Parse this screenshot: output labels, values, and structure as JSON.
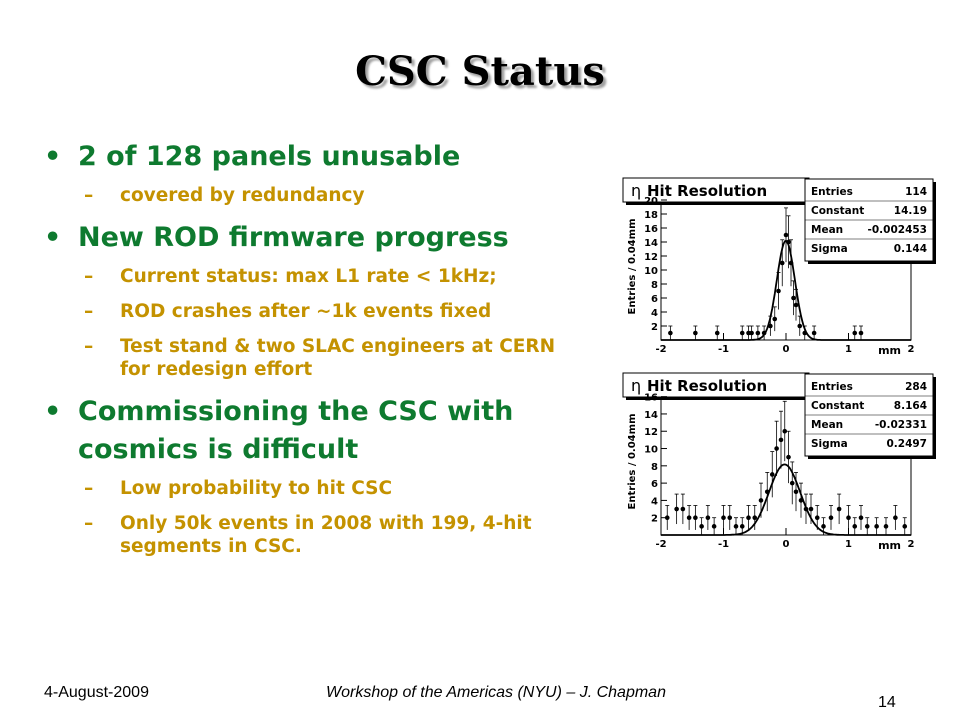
{
  "slide": {
    "title": "CSC Status",
    "bullets": [
      {
        "text": "2 of 128 panels unusable",
        "subs": [
          "covered by redundancy"
        ]
      },
      {
        "text": "New ROD firmware progress",
        "subs": [
          "Current status: max L1 rate < 1kHz;",
          "ROD crashes after ~1k events fixed",
          "Test stand & two SLAC engineers at CERN for redesign effort"
        ]
      },
      {
        "text": "Commissioning the CSC with cosmics is difficult",
        "subs": [
          "Low probability to hit CSC",
          "Only 50k events in 2008 with 199, 4-hit segments in CSC."
        ]
      }
    ],
    "bullet_glyph": "•",
    "dash_glyph": "–"
  },
  "footer": {
    "date": "4-August-2009",
    "event": "Workshop of the Americas (NYU) – J. Chapman",
    "page": "14"
  },
  "plots": [
    {
      "title_symbol": "η",
      "title": "Hit Resolution",
      "ylabel": "Entries / 0.04mm",
      "xlabel": "mm",
      "ylim": [
        0,
        21
      ],
      "yticks": [
        "2",
        "4",
        "6",
        "8",
        "10",
        "12",
        "14",
        "16",
        "18",
        "20"
      ],
      "xticks": [
        "-2",
        "-1",
        "0",
        "1",
        "2"
      ],
      "stats": [
        {
          "label": "Entries",
          "value": "114"
        },
        {
          "label": "Constant",
          "value": "14.19"
        },
        {
          "label": "Mean",
          "value": "-0.002453"
        },
        {
          "label": "Sigma",
          "value": "0.144"
        }
      ],
      "fit": {
        "constant": 14.19,
        "mean": -0.002453,
        "sigma": 0.144
      },
      "points": [
        [
          -1.85,
          1
        ],
        [
          -1.45,
          1
        ],
        [
          -1.1,
          1
        ],
        [
          -0.7,
          1
        ],
        [
          -0.6,
          1
        ],
        [
          -0.55,
          1
        ],
        [
          -0.45,
          1
        ],
        [
          -0.35,
          1
        ],
        [
          -0.25,
          2
        ],
        [
          -0.18,
          3
        ],
        [
          -0.12,
          7
        ],
        [
          -0.06,
          11
        ],
        [
          0.0,
          15
        ],
        [
          0.04,
          14
        ],
        [
          0.08,
          11
        ],
        [
          0.12,
          6
        ],
        [
          0.16,
          5
        ],
        [
          0.22,
          2
        ],
        [
          0.3,
          1
        ],
        [
          0.45,
          1
        ],
        [
          1.1,
          1
        ],
        [
          1.2,
          1
        ]
      ]
    },
    {
      "title_symbol": "η",
      "title": "Hit Resolution",
      "ylabel": "Entries / 0.04mm",
      "xlabel": "mm",
      "ylim": [
        0,
        17
      ],
      "yticks": [
        "2",
        "4",
        "6",
        "8",
        "10",
        "12",
        "14",
        "16"
      ],
      "xticks": [
        "-2",
        "-1",
        "0",
        "1",
        "2"
      ],
      "stats": [
        {
          "label": "Entries",
          "value": "284"
        },
        {
          "label": "Constant",
          "value": "8.164"
        },
        {
          "label": "Mean",
          "value": "-0.02331"
        },
        {
          "label": "Sigma",
          "value": "0.2497"
        }
      ],
      "fit": {
        "constant": 8.164,
        "mean": -0.02331,
        "sigma": 0.2497
      },
      "points": [
        [
          -1.9,
          2
        ],
        [
          -1.75,
          3
        ],
        [
          -1.65,
          3
        ],
        [
          -1.55,
          2
        ],
        [
          -1.45,
          2
        ],
        [
          -1.35,
          1
        ],
        [
          -1.25,
          2
        ],
        [
          -1.15,
          1
        ],
        [
          -1.0,
          2
        ],
        [
          -0.9,
          2
        ],
        [
          -0.8,
          1
        ],
        [
          -0.7,
          1
        ],
        [
          -0.6,
          2
        ],
        [
          -0.5,
          2
        ],
        [
          -0.4,
          4
        ],
        [
          -0.3,
          5
        ],
        [
          -0.22,
          7
        ],
        [
          -0.15,
          10
        ],
        [
          -0.08,
          11
        ],
        [
          -0.02,
          12
        ],
        [
          0.04,
          9
        ],
        [
          0.1,
          6
        ],
        [
          0.16,
          5
        ],
        [
          0.24,
          4
        ],
        [
          0.32,
          3
        ],
        [
          0.4,
          3
        ],
        [
          0.5,
          2
        ],
        [
          0.6,
          1
        ],
        [
          0.72,
          2
        ],
        [
          0.85,
          3
        ],
        [
          1.0,
          2
        ],
        [
          1.1,
          1
        ],
        [
          1.2,
          2
        ],
        [
          1.3,
          1
        ],
        [
          1.45,
          1
        ],
        [
          1.6,
          1
        ],
        [
          1.75,
          2
        ],
        [
          1.9,
          1
        ]
      ]
    }
  ]
}
